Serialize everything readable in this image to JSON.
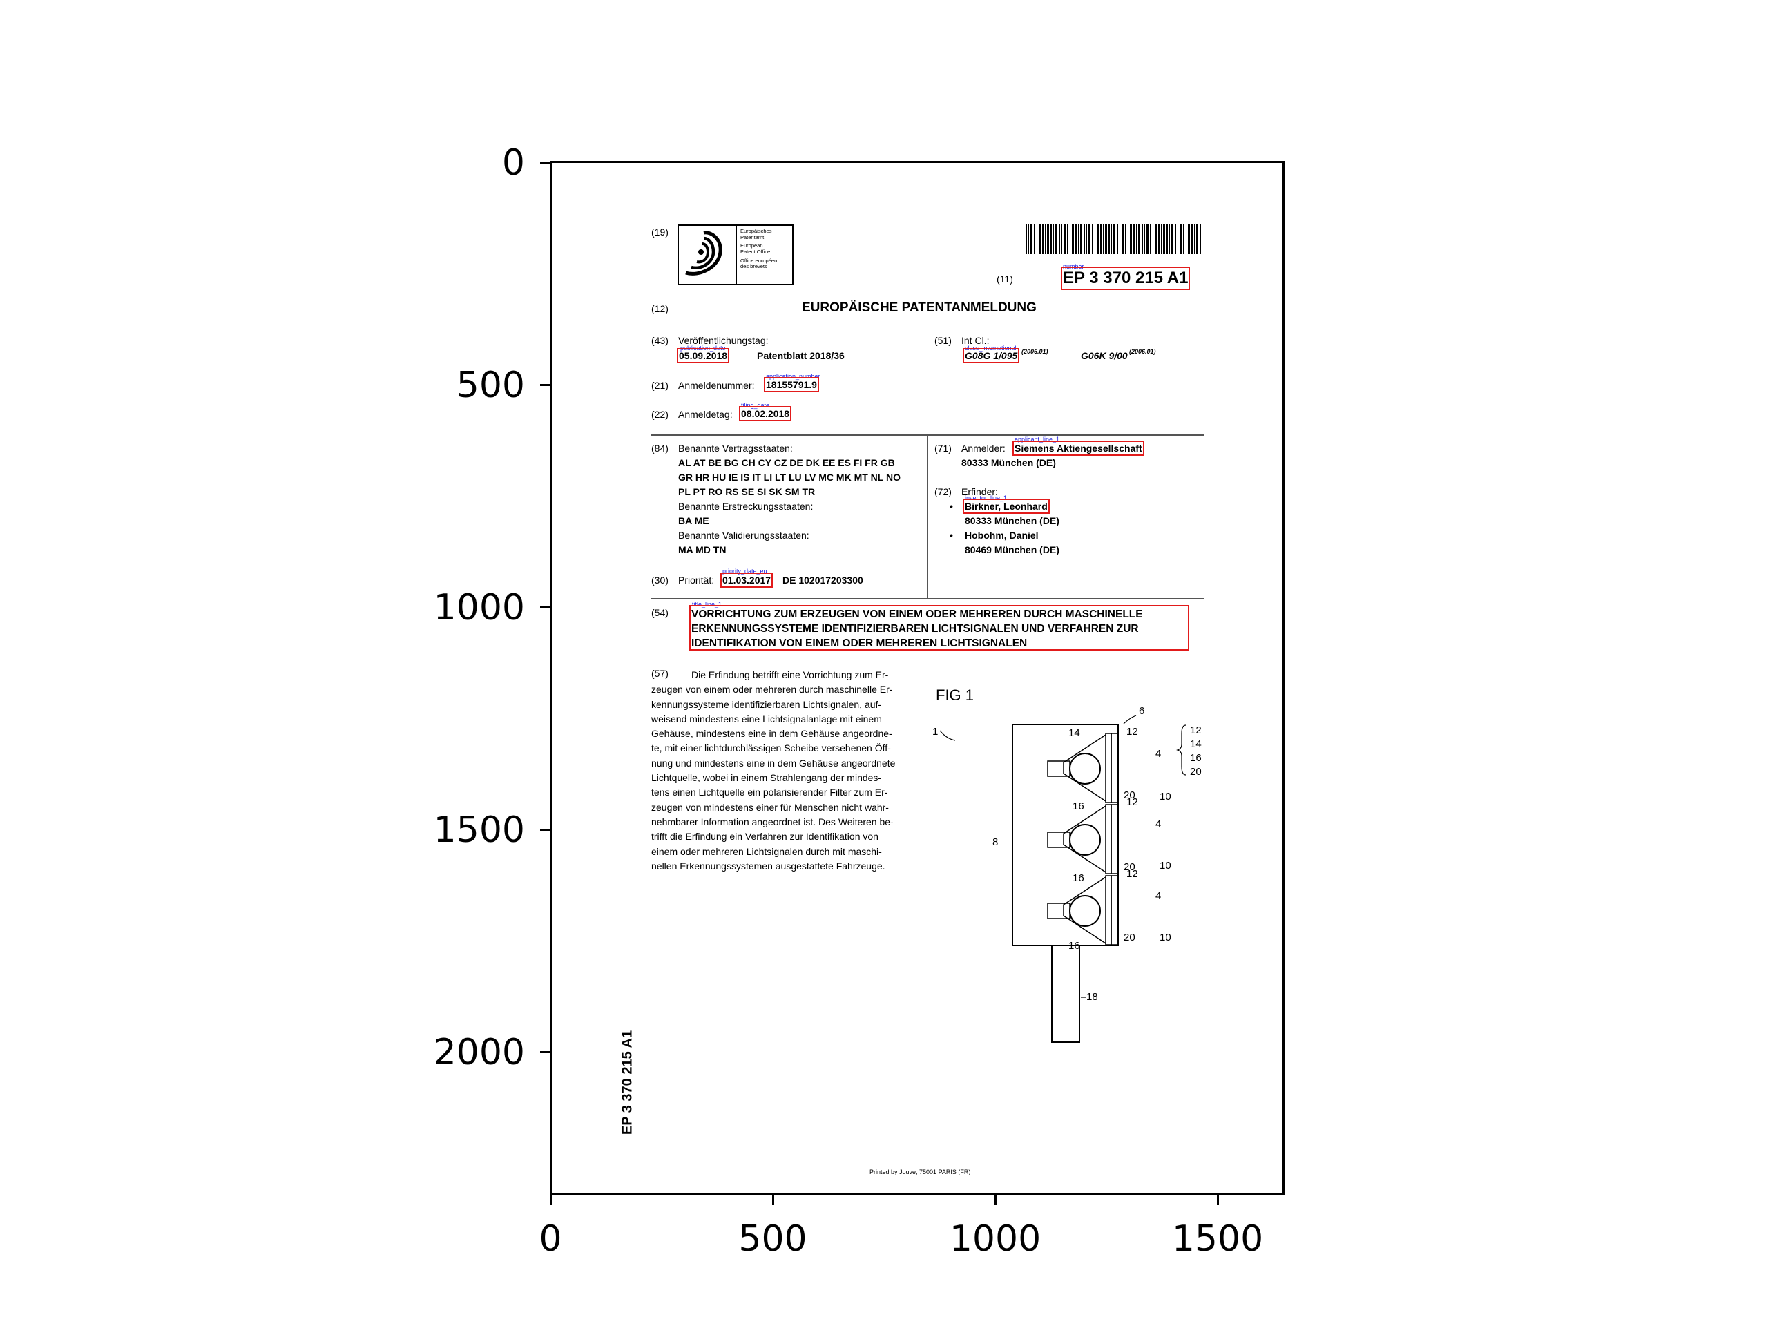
{
  "axes": {
    "x_ticks": [
      "0",
      "500",
      "1000",
      "1500"
    ],
    "y_ticks": [
      "0",
      "500",
      "1000",
      "1500",
      "2000"
    ]
  },
  "header": {
    "code_19": "(19)",
    "office": [
      "Europäisches",
      "Patentamt",
      "European",
      "Patent Office",
      "Office européen",
      "des brevets"
    ],
    "code_11": "(11)",
    "number_tag": "number",
    "number": "EP 3 370 215 A1",
    "code_12": "(12)",
    "doc_type": "EUROPÄISCHE PATENTANMELDUNG"
  },
  "bib": {
    "code_43": "(43)",
    "pub_label": "Veröffentlichungstag:",
    "pub_tag": "publication_date",
    "pub_date": "05.09.2018",
    "patentblatt": "Patentblatt 2018/36",
    "code_51": "(51)",
    "intcl_label": "Int Cl.:",
    "class_tag": "class_international",
    "class_1": "G08G 1/095",
    "class_1_ver": "(2006.01)",
    "class_2": "G06K 9/00",
    "class_2_ver": "(2006.01)",
    "code_21": "(21)",
    "app_label": "Anmeldenummer:",
    "app_tag": "application_number",
    "app_number": "18155791.9",
    "code_22": "(22)",
    "filing_label": "Anmeldetag:",
    "filing_tag": "filing_date",
    "filing_date": "08.02.2018",
    "code_84": "(84)",
    "states_label": "Benannte Vertragsstaaten:",
    "states_lines": [
      "AL AT BE BG CH CY CZ DE DK EE ES FI FR GB",
      "GR HR HU IE IS IT LI LT LU LV MC MK MT NL NO",
      "PL PT RO RS SE SI SK SM TR"
    ],
    "ext_label": "Benannte Erstreckungsstaaten:",
    "ext_states": "BA ME",
    "val_label": "Benannte Validierungsstaaten:",
    "val_states": "MA MD TN",
    "code_71": "(71)",
    "applicant_label": "Anmelder:",
    "applicant_tag": "applicant_line_1",
    "applicant": "Siemens Aktiengesellschaft",
    "applicant_city": "80333 München (DE)",
    "code_72": "(72)",
    "inventor_label": "Erfinder:",
    "inventor_tag": "inventor_line_1",
    "inventor_1": "Birkner, Leonhard",
    "inventor_1_city": "80333 München (DE)",
    "inventor_2": "Hobohm, Daniel",
    "inventor_2_city": "80469 München (DE)",
    "bullet": "•",
    "code_30": "(30)",
    "priority_label": "Priorität:",
    "priority_tag": "priority_date_eu",
    "priority_date": "01.03.2017",
    "priority_number": "DE 102017203300"
  },
  "title": {
    "code_54": "(54)",
    "tag": "title_line_1",
    "lines": [
      "VORRICHTUNG ZUM ERZEUGEN VON EINEM ODER MEHREREN DURCH MASCHINELLE",
      "ERKENNUNGSSYSTEME IDENTIFIZIERBAREN LICHTSIGNALEN UND VERFAHREN ZUR",
      "IDENTIFIKATION VON EINEM ODER MEHREREN LICHTSIGNALEN"
    ]
  },
  "abstract": {
    "code_57": "(57)",
    "lines": [
      "Die Erfindung betrifft eine Vorrichtung zum Er-",
      "zeugen von einem oder mehreren durch maschinelle Er-",
      "kennungssysteme identifizierbaren Lichtsignalen, auf-",
      "weisend mindestens eine Lichtsignalanlage mit einem",
      "Gehäuse, mindestens eine in dem Gehäuse angeordne-",
      "te, mit einer lichtdurchlässigen Scheibe versehenen Öff-",
      "nung und mindestens eine in dem Gehäuse angeordnete",
      "Lichtquelle, wobei in einem Strahlengang der mindes-",
      "tens einen Lichtquelle ein polarisierender Filter zum Er-",
      "zeugen von mindestens einer für Menschen nicht wahr-",
      "nehmbarer Information angeordnet ist. Des Weiteren be-",
      "trifft die Erfindung ein Verfahren zur Identifikation von",
      "einem oder mehreren Lichtsignalen durch mit maschi-",
      "nellen Erkennungssystemen ausgestattete Fahrzeuge."
    ]
  },
  "figure": {
    "title": "FIG 1",
    "labels": {
      "n1": "1",
      "n4": "4",
      "n6": "6",
      "n8": "8",
      "n10": "10",
      "n12": "12",
      "n14": "14",
      "n16": "16",
      "n18": "18",
      "n20": "20"
    }
  },
  "side_number": "EP 3 370 215 A1",
  "footer": "Printed by Jouve, 75001 PARIS (FR)"
}
